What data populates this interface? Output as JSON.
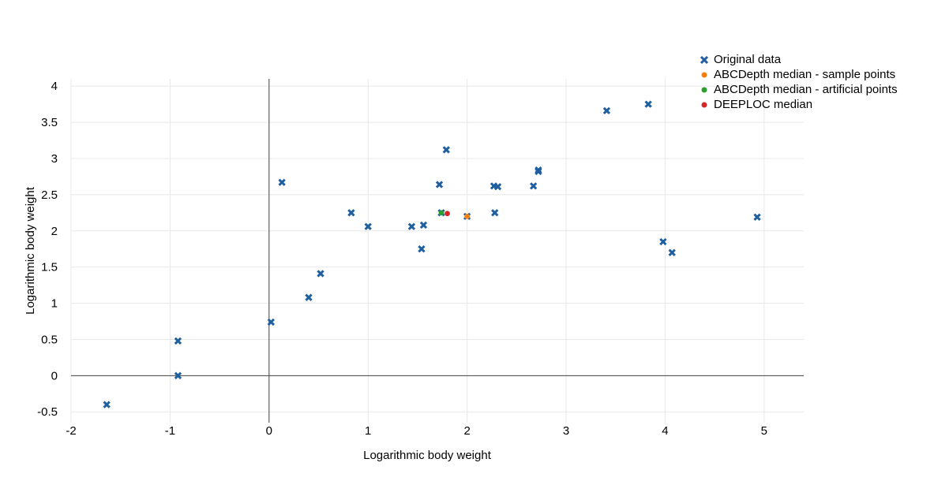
{
  "chart_data": {
    "type": "scatter",
    "title": "",
    "xlabel": "Logarithmic body weight",
    "ylabel": "Logarithmic body weight",
    "xlim": [
      -2,
      5.4
    ],
    "ylim": [
      -0.65,
      4.1
    ],
    "xticks": [
      "-2",
      "-1",
      "0",
      "1",
      "2",
      "3",
      "4",
      "5"
    ],
    "xtick_values": [
      -2,
      -1,
      0,
      1,
      2,
      3,
      4,
      5
    ],
    "yticks": [
      "-0.5",
      "0",
      "0.5",
      "1",
      "1.5",
      "2",
      "2.5",
      "3",
      "3.5",
      "4"
    ],
    "ytick_values": [
      -0.5,
      0,
      0.5,
      1,
      1.5,
      2,
      2.5,
      3,
      3.5,
      4
    ],
    "grid": true,
    "legend_position": "top-right",
    "series": [
      {
        "name": "Original data",
        "marker": "x",
        "color": "#1f5fa0",
        "points": [
          [
            -1.64,
            -0.4
          ],
          [
            -0.92,
            0.0
          ],
          [
            -0.92,
            0.48
          ],
          [
            0.02,
            0.74
          ],
          [
            0.13,
            2.67
          ],
          [
            0.4,
            1.08
          ],
          [
            0.52,
            1.41
          ],
          [
            0.83,
            2.25
          ],
          [
            1.0,
            2.06
          ],
          [
            1.44,
            2.06
          ],
          [
            1.54,
            1.75
          ],
          [
            1.56,
            2.08
          ],
          [
            1.72,
            2.64
          ],
          [
            1.74,
            2.25
          ],
          [
            1.79,
            3.12
          ],
          [
            2.0,
            2.2
          ],
          [
            2.27,
            2.62
          ],
          [
            2.28,
            2.25
          ],
          [
            2.31,
            2.61
          ],
          [
            2.67,
            2.62
          ],
          [
            2.72,
            2.82
          ],
          [
            2.72,
            2.84
          ],
          [
            3.41,
            3.66
          ],
          [
            3.83,
            3.75
          ],
          [
            3.98,
            1.85
          ],
          [
            4.07,
            1.7
          ],
          [
            4.93,
            2.19
          ]
        ]
      },
      {
        "name": "ABCDepth median - sample points",
        "marker": "dot",
        "color": "#ff7f0e",
        "points": [
          [
            2.0,
            2.2
          ]
        ]
      },
      {
        "name": "ABCDepth median - artificial points",
        "marker": "dot",
        "color": "#2ca02c",
        "points": [
          [
            1.74,
            2.25
          ]
        ]
      },
      {
        "name": "DEEPLOC median",
        "marker": "dot",
        "color": "#d62728",
        "points": [
          [
            1.8,
            2.24
          ]
        ]
      }
    ]
  }
}
